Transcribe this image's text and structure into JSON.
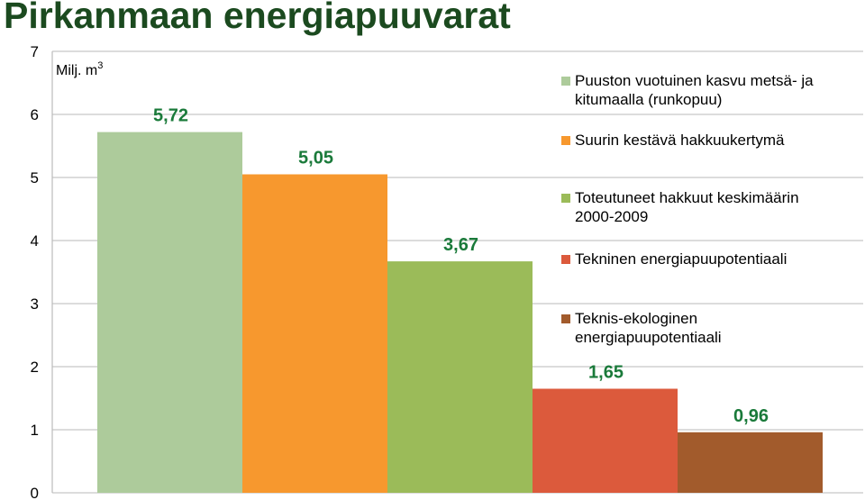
{
  "title": "Pirkanmaan energiapuuvarat",
  "chart_data": {
    "type": "bar",
    "ylabel_main": "Milj. m",
    "ylabel_sup": "3",
    "ylim": [
      0,
      7
    ],
    "yticks": [
      "0",
      "1",
      "2",
      "3",
      "4",
      "5",
      "6",
      "7"
    ],
    "grid": true,
    "legend_position": "right",
    "series": [
      {
        "name": [
          "Puuston vuotuinen kasvu metsä- ja",
          "kitumaalla (runkopuu)"
        ],
        "value": 5.72,
        "label": "5,72",
        "color": "#adcb9b"
      },
      {
        "name": [
          "Suurin kestävä hakkuukertymä"
        ],
        "value": 5.05,
        "label": "5,05",
        "color": "#f7982e"
      },
      {
        "name": [
          "Toteutuneet hakkuut keskimäärin",
          "2000-2009"
        ],
        "value": 3.67,
        "label": "3,67",
        "color": "#9bbb59"
      },
      {
        "name": [
          "Tekninen energiapuupotentiaali"
        ],
        "value": 1.65,
        "label": "1,65",
        "color": "#dc5a3c"
      },
      {
        "name": [
          "Teknis-ekologinen",
          "energiapuupotentiaali"
        ],
        "value": 0.96,
        "label": "0,96",
        "color": "#a25b2c"
      }
    ],
    "data_label_color": "#1a7a3a"
  }
}
